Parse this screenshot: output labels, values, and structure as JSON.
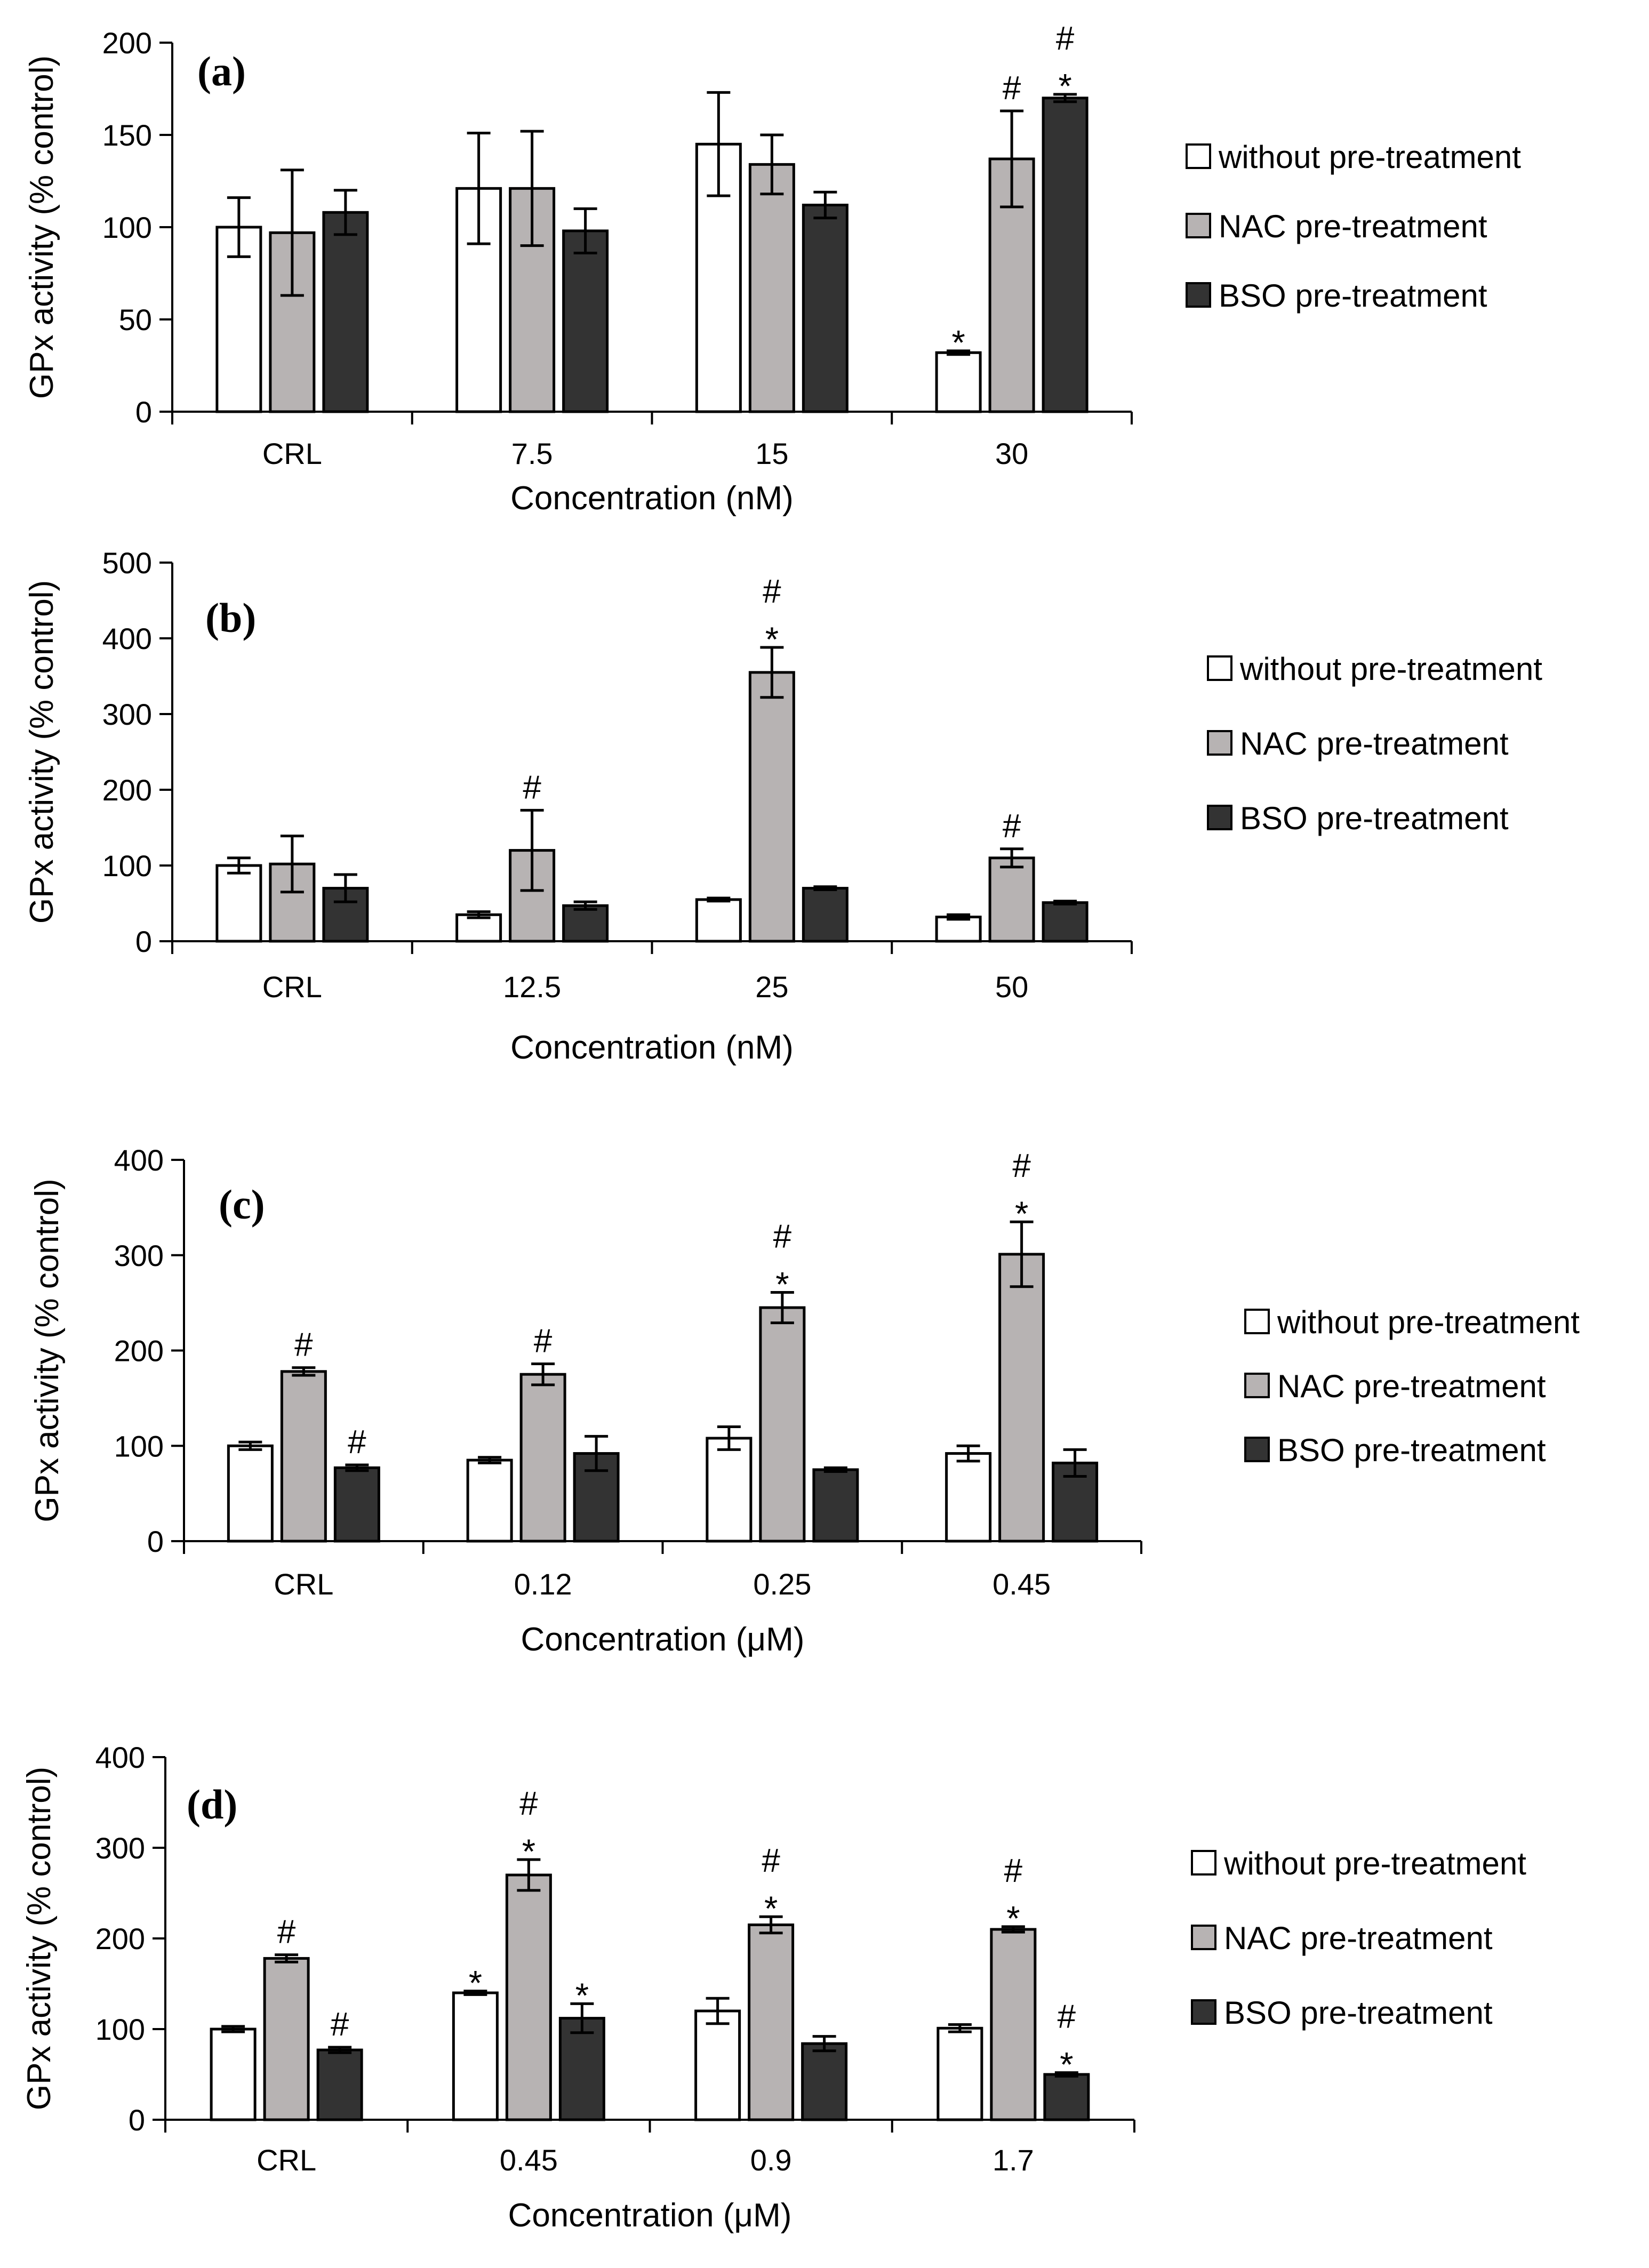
{
  "chart_data": [
    {
      "type": "bar",
      "panel_label": "(a)",
      "ylabel": "GPx activity (% control)",
      "xlabel": "Concentration (nM)",
      "ylim": [
        0,
        200
      ],
      "yticks": [
        "0",
        "50",
        "100",
        "150",
        "200"
      ],
      "categories": [
        "CRL",
        "7.5",
        "15",
        "30"
      ],
      "legend_position": "right",
      "series": [
        {
          "name": "without pre-treatment",
          "color": "#ffffff",
          "values": [
            100,
            121,
            145,
            32
          ],
          "errors": [
            16,
            30,
            28,
            1
          ],
          "marks": [
            [],
            [],
            [],
            [
              "*"
            ]
          ]
        },
        {
          "name": "NAC pre-treatment",
          "color": "#b7b3b3",
          "values": [
            97,
            121,
            134,
            137
          ],
          "errors": [
            34,
            31,
            16,
            26
          ],
          "marks": [
            [],
            [],
            [],
            [
              "#"
            ]
          ]
        },
        {
          "name": "BSO pre-treatment",
          "color": "#333333",
          "values": [
            108,
            98,
            112,
            170
          ],
          "errors": [
            12,
            12,
            7,
            2
          ],
          "marks": [
            [],
            [],
            [],
            [
              "*",
              "#"
            ]
          ]
        }
      ]
    },
    {
      "type": "bar",
      "panel_label": "(b)",
      "ylabel": "GPx activity (% control)",
      "xlabel": "Concentration (nM)",
      "ylim": [
        0,
        500
      ],
      "yticks": [
        "0",
        "100",
        "200",
        "300",
        "400",
        "500"
      ],
      "categories": [
        "CRL",
        "12.5",
        "25",
        "50"
      ],
      "legend_position": "right",
      "series": [
        {
          "name": "without pre-treatment",
          "color": "#ffffff",
          "values": [
            100,
            35,
            55,
            32
          ],
          "errors": [
            10,
            4,
            2,
            3
          ],
          "marks": [
            [],
            [],
            [],
            []
          ]
        },
        {
          "name": "NAC pre-treatment",
          "color": "#b7b3b3",
          "values": [
            102,
            120,
            355,
            110
          ],
          "errors": [
            37,
            53,
            33,
            12
          ],
          "marks": [
            [],
            [
              "#"
            ],
            [
              "*",
              "#"
            ],
            [
              "#"
            ]
          ]
        },
        {
          "name": "BSO pre-treatment",
          "color": "#333333",
          "values": [
            70,
            47,
            70,
            51
          ],
          "errors": [
            18,
            5,
            2,
            2
          ],
          "marks": [
            [],
            [],
            [],
            []
          ]
        }
      ]
    },
    {
      "type": "bar",
      "panel_label": "(c)",
      "ylabel": "GPx activity (% control)",
      "xlabel": "Concentration (μM)",
      "ylim": [
        0,
        400
      ],
      "yticks": [
        "0",
        "100",
        "200",
        "300",
        "400"
      ],
      "categories": [
        "CRL",
        "0.12",
        "0.25",
        "0.45"
      ],
      "legend_position": "right",
      "series": [
        {
          "name": "without pre-treatment",
          "color": "#ffffff",
          "values": [
            100,
            85,
            108,
            92
          ],
          "errors": [
            4,
            3,
            12,
            8
          ],
          "marks": [
            [],
            [],
            [],
            []
          ]
        },
        {
          "name": "NAC pre-treatment",
          "color": "#b7b3b3",
          "values": [
            178,
            175,
            245,
            301
          ],
          "errors": [
            4,
            11,
            16,
            34
          ],
          "marks": [
            [
              "#"
            ],
            [
              "#"
            ],
            [
              "*",
              "#"
            ],
            [
              "*",
              "#"
            ]
          ]
        },
        {
          "name": "BSO pre-treatment",
          "color": "#333333",
          "values": [
            77,
            92,
            75,
            82
          ],
          "errors": [
            3,
            18,
            2,
            14
          ],
          "marks": [
            [
              "#"
            ],
            [],
            [],
            []
          ]
        }
      ]
    },
    {
      "type": "bar",
      "panel_label": "(d)",
      "ylabel": "GPx activity (% control)",
      "xlabel": "Concentration (μM)",
      "ylim": [
        0,
        400
      ],
      "yticks": [
        "0",
        "100",
        "200",
        "300",
        "400"
      ],
      "categories": [
        "CRL",
        "0.45",
        "0.9",
        "1.7"
      ],
      "legend_position": "right",
      "series": [
        {
          "name": "without pre-treatment",
          "color": "#ffffff",
          "values": [
            100,
            140,
            120,
            101
          ],
          "errors": [
            3,
            2,
            14,
            4
          ],
          "marks": [
            [],
            [
              "*"
            ],
            [],
            []
          ]
        },
        {
          "name": "NAC pre-treatment",
          "color": "#b7b3b3",
          "values": [
            178,
            270,
            215,
            210
          ],
          "errors": [
            4,
            17,
            9,
            3
          ],
          "marks": [
            [
              "#"
            ],
            [
              "*",
              "#"
            ],
            [
              "*",
              "#"
            ],
            [
              "*",
              "#"
            ]
          ]
        },
        {
          "name": "BSO pre-treatment",
          "color": "#333333",
          "values": [
            77,
            112,
            84,
            50
          ],
          "errors": [
            3,
            16,
            8,
            2
          ],
          "marks": [
            [
              "#"
            ],
            [
              "*"
            ],
            [],
            [
              "*",
              "#"
            ]
          ]
        }
      ]
    }
  ]
}
